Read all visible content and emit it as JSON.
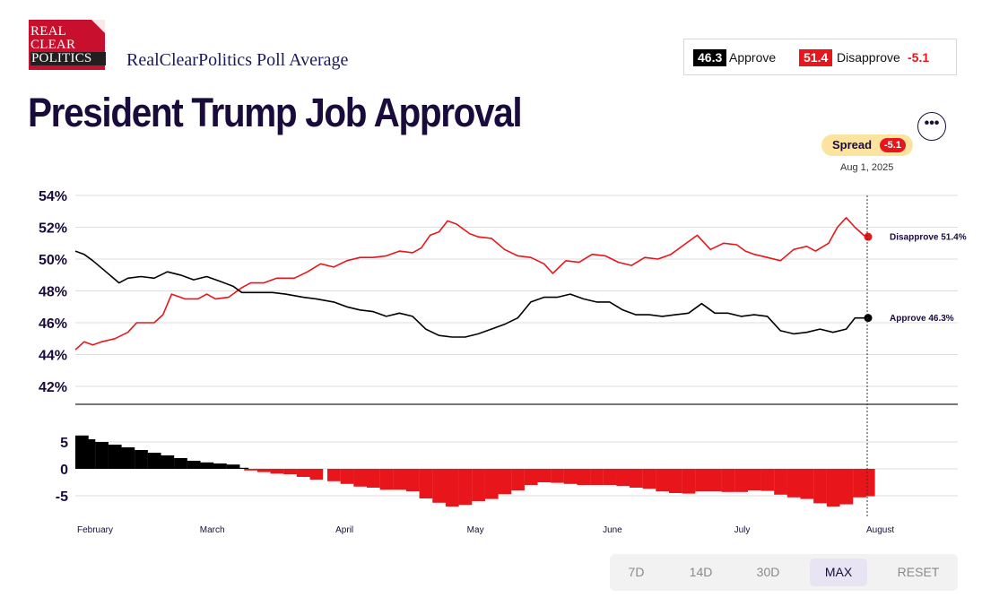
{
  "header": {
    "logo_lines": [
      "REAL",
      "CLEAR",
      "POLITICS"
    ],
    "source": "RealClearPolitics Poll Average",
    "title": "President Trump Job Approval"
  },
  "legend": {
    "approve_value": "46.3",
    "approve_label": "Approve",
    "disapprove_value": "51.4",
    "disapprove_label": "Disapprove",
    "spread": "-5.1"
  },
  "more_button": "•••",
  "spread_pill": {
    "label": "Spread",
    "value": "-5.1",
    "date": "Aug 1, 2025"
  },
  "range_buttons": [
    {
      "label": "7D",
      "active": false
    },
    {
      "label": "14D",
      "active": false
    },
    {
      "label": "30D",
      "active": false
    },
    {
      "label": "MAX",
      "active": true
    },
    {
      "label": "RESET",
      "active": false
    }
  ],
  "colors": {
    "approve": "#000000",
    "disapprove": "#e8161b",
    "title": "#1a0b3d",
    "logo": "#c8102e"
  },
  "chart_data": [
    {
      "type": "line",
      "x_range": [
        "2025-02-01",
        "2025-08-01"
      ],
      "x_ticks": [
        {
          "label": "February",
          "date": "2025-02-01"
        },
        {
          "label": "March",
          "date": "2025-03-01"
        },
        {
          "label": "April",
          "date": "2025-04-01"
        },
        {
          "label": "May",
          "date": "2025-05-01"
        },
        {
          "label": "June",
          "date": "2025-06-01"
        },
        {
          "label": "July",
          "date": "2025-07-01"
        },
        {
          "label": "August",
          "date": "2025-08-01"
        }
      ],
      "y_ticks": [
        "54%",
        "52%",
        "50%",
        "48%",
        "46%",
        "44%",
        "42%"
      ],
      "ylim": [
        40.7,
        54
      ],
      "grid": true,
      "series": [
        {
          "name": "Disapprove",
          "end_label": "Disapprove 51.4%",
          "color": "#e8161b",
          "points": [
            [
              "2025-02-01",
              44.3
            ],
            [
              "2025-02-03",
              44.8
            ],
            [
              "2025-02-05",
              44.6
            ],
            [
              "2025-02-07",
              44.8
            ],
            [
              "2025-02-10",
              45.0
            ],
            [
              "2025-02-13",
              45.4
            ],
            [
              "2025-02-15",
              46.0
            ],
            [
              "2025-02-19",
              46.0
            ],
            [
              "2025-02-21",
              46.5
            ],
            [
              "2025-02-23",
              47.8
            ],
            [
              "2025-02-26",
              47.5
            ],
            [
              "2025-03-01",
              47.5
            ],
            [
              "2025-03-03",
              47.8
            ],
            [
              "2025-03-05",
              47.5
            ],
            [
              "2025-03-08",
              47.6
            ],
            [
              "2025-03-11",
              48.2
            ],
            [
              "2025-03-13",
              48.5
            ],
            [
              "2025-03-16",
              48.5
            ],
            [
              "2025-03-19",
              48.8
            ],
            [
              "2025-03-23",
              48.8
            ],
            [
              "2025-03-26",
              49.2
            ],
            [
              "2025-03-29",
              49.7
            ],
            [
              "2025-04-01",
              49.5
            ],
            [
              "2025-04-04",
              49.9
            ],
            [
              "2025-04-07",
              50.1
            ],
            [
              "2025-04-10",
              50.1
            ],
            [
              "2025-04-13",
              50.2
            ],
            [
              "2025-04-16",
              50.5
            ],
            [
              "2025-04-19",
              50.4
            ],
            [
              "2025-04-21",
              50.7
            ],
            [
              "2025-04-23",
              51.5
            ],
            [
              "2025-04-25",
              51.7
            ],
            [
              "2025-04-27",
              52.4
            ],
            [
              "2025-04-29",
              52.2
            ],
            [
              "2025-05-02",
              51.6
            ],
            [
              "2025-05-04",
              51.4
            ],
            [
              "2025-05-07",
              51.3
            ],
            [
              "2025-05-10",
              50.6
            ],
            [
              "2025-05-13",
              50.2
            ],
            [
              "2025-05-16",
              50.1
            ],
            [
              "2025-05-19",
              49.7
            ],
            [
              "2025-05-21",
              49.1
            ],
            [
              "2025-05-24",
              49.9
            ],
            [
              "2025-05-27",
              49.8
            ],
            [
              "2025-05-30",
              50.3
            ],
            [
              "2025-06-02",
              50.2
            ],
            [
              "2025-06-05",
              49.8
            ],
            [
              "2025-06-08",
              49.6
            ],
            [
              "2025-06-11",
              50.1
            ],
            [
              "2025-06-14",
              50.0
            ],
            [
              "2025-06-17",
              50.3
            ],
            [
              "2025-06-20",
              50.9
            ],
            [
              "2025-06-23",
              51.5
            ],
            [
              "2025-06-26",
              50.6
            ],
            [
              "2025-06-29",
              51.0
            ],
            [
              "2025-07-02",
              50.9
            ],
            [
              "2025-07-04",
              50.5
            ],
            [
              "2025-07-06",
              50.3
            ],
            [
              "2025-07-09",
              50.1
            ],
            [
              "2025-07-12",
              49.9
            ],
            [
              "2025-07-15",
              50.6
            ],
            [
              "2025-07-18",
              50.8
            ],
            [
              "2025-07-20",
              50.5
            ],
            [
              "2025-07-23",
              51.0
            ],
            [
              "2025-07-25",
              52.0
            ],
            [
              "2025-07-27",
              52.6
            ],
            [
              "2025-07-29",
              52.0
            ],
            [
              "2025-07-31",
              51.5
            ],
            [
              "2025-08-01",
              51.4
            ]
          ]
        },
        {
          "name": "Approve",
          "end_label": "Approve 46.3%",
          "color": "#000000",
          "points": [
            [
              "2025-02-01",
              50.5
            ],
            [
              "2025-02-03",
              50.3
            ],
            [
              "2025-02-05",
              49.9
            ],
            [
              "2025-02-08",
              49.2
            ],
            [
              "2025-02-11",
              48.5
            ],
            [
              "2025-02-13",
              48.8
            ],
            [
              "2025-02-16",
              48.9
            ],
            [
              "2025-02-19",
              48.8
            ],
            [
              "2025-02-22",
              49.2
            ],
            [
              "2025-02-25",
              49.0
            ],
            [
              "2025-02-28",
              48.7
            ],
            [
              "2025-03-03",
              48.9
            ],
            [
              "2025-03-06",
              48.6
            ],
            [
              "2025-03-09",
              48.3
            ],
            [
              "2025-03-11",
              47.9
            ],
            [
              "2025-03-14",
              47.9
            ],
            [
              "2025-03-18",
              47.9
            ],
            [
              "2025-03-21",
              47.8
            ],
            [
              "2025-03-25",
              47.6
            ],
            [
              "2025-03-28",
              47.5
            ],
            [
              "2025-04-01",
              47.3
            ],
            [
              "2025-04-04",
              47.0
            ],
            [
              "2025-04-07",
              46.8
            ],
            [
              "2025-04-10",
              46.7
            ],
            [
              "2025-04-13",
              46.4
            ],
            [
              "2025-04-16",
              46.6
            ],
            [
              "2025-04-19",
              46.4
            ],
            [
              "2025-04-22",
              45.6
            ],
            [
              "2025-04-25",
              45.2
            ],
            [
              "2025-04-28",
              45.1
            ],
            [
              "2025-05-01",
              45.1
            ],
            [
              "2025-05-04",
              45.3
            ],
            [
              "2025-05-07",
              45.6
            ],
            [
              "2025-05-10",
              45.9
            ],
            [
              "2025-05-13",
              46.3
            ],
            [
              "2025-05-16",
              47.3
            ],
            [
              "2025-05-19",
              47.6
            ],
            [
              "2025-05-22",
              47.6
            ],
            [
              "2025-05-25",
              47.8
            ],
            [
              "2025-05-28",
              47.5
            ],
            [
              "2025-05-31",
              47.3
            ],
            [
              "2025-06-03",
              47.3
            ],
            [
              "2025-06-06",
              46.8
            ],
            [
              "2025-06-09",
              46.5
            ],
            [
              "2025-06-12",
              46.5
            ],
            [
              "2025-06-15",
              46.4
            ],
            [
              "2025-06-18",
              46.5
            ],
            [
              "2025-06-21",
              46.6
            ],
            [
              "2025-06-24",
              47.2
            ],
            [
              "2025-06-27",
              46.6
            ],
            [
              "2025-06-30",
              46.6
            ],
            [
              "2025-07-03",
              46.4
            ],
            [
              "2025-07-06",
              46.5
            ],
            [
              "2025-07-09",
              46.4
            ],
            [
              "2025-07-12",
              45.5
            ],
            [
              "2025-07-15",
              45.3
            ],
            [
              "2025-07-18",
              45.4
            ],
            [
              "2025-07-21",
              45.6
            ],
            [
              "2025-07-24",
              45.4
            ],
            [
              "2025-07-27",
              45.6
            ],
            [
              "2025-07-29",
              46.3
            ],
            [
              "2025-08-01",
              46.3
            ]
          ]
        }
      ]
    },
    {
      "type": "bar",
      "series_name": "Spread",
      "x_range": [
        "2025-02-01",
        "2025-08-01"
      ],
      "y_ticks": [
        "5",
        "0",
        "-5"
      ],
      "ylim": [
        -8,
        8
      ],
      "positive_color": "#000000",
      "negative_color": "#e8161b",
      "points": [
        [
          "2025-02-01",
          6.2
        ],
        [
          "2025-02-04",
          5.5
        ],
        [
          "2025-02-07",
          5.0
        ],
        [
          "2025-02-10",
          4.5
        ],
        [
          "2025-02-13",
          4.0
        ],
        [
          "2025-02-16",
          3.5
        ],
        [
          "2025-02-19",
          3.0
        ],
        [
          "2025-02-22",
          2.5
        ],
        [
          "2025-02-25",
          2.0
        ],
        [
          "2025-02-28",
          1.5
        ],
        [
          "2025-03-03",
          1.2
        ],
        [
          "2025-03-06",
          1.0
        ],
        [
          "2025-03-09",
          0.8
        ],
        [
          "2025-03-11",
          0.2
        ],
        [
          "2025-03-13",
          -0.3
        ],
        [
          "2025-03-16",
          -0.6
        ],
        [
          "2025-03-19",
          -0.9
        ],
        [
          "2025-03-22",
          -1.0
        ],
        [
          "2025-03-25",
          -1.5
        ],
        [
          "2025-03-28",
          -2.0
        ],
        [
          "2025-04-01",
          -2.3
        ],
        [
          "2025-04-04",
          -2.8
        ],
        [
          "2025-04-07",
          -3.3
        ],
        [
          "2025-04-10",
          -3.5
        ],
        [
          "2025-04-13",
          -3.9
        ],
        [
          "2025-04-16",
          -3.9
        ],
        [
          "2025-04-19",
          -4.2
        ],
        [
          "2025-04-22",
          -5.5
        ],
        [
          "2025-04-25",
          -6.3
        ],
        [
          "2025-04-28",
          -7.0
        ],
        [
          "2025-05-01",
          -6.7
        ],
        [
          "2025-05-04",
          -6.0
        ],
        [
          "2025-05-07",
          -5.6
        ],
        [
          "2025-05-10",
          -4.7
        ],
        [
          "2025-05-13",
          -4.0
        ],
        [
          "2025-05-16",
          -3.0
        ],
        [
          "2025-05-19",
          -2.5
        ],
        [
          "2025-05-22",
          -2.6
        ],
        [
          "2025-05-25",
          -2.8
        ],
        [
          "2025-05-28",
          -3.0
        ],
        [
          "2025-05-31",
          -3.0
        ],
        [
          "2025-06-03",
          -3.0
        ],
        [
          "2025-06-06",
          -3.2
        ],
        [
          "2025-06-09",
          -3.5
        ],
        [
          "2025-06-12",
          -3.7
        ],
        [
          "2025-06-15",
          -4.2
        ],
        [
          "2025-06-18",
          -4.5
        ],
        [
          "2025-06-21",
          -4.6
        ],
        [
          "2025-06-24",
          -4.2
        ],
        [
          "2025-06-27",
          -4.2
        ],
        [
          "2025-06-30",
          -4.3
        ],
        [
          "2025-07-03",
          -4.3
        ],
        [
          "2025-07-06",
          -4.0
        ],
        [
          "2025-07-09",
          -4.1
        ],
        [
          "2025-07-12",
          -4.8
        ],
        [
          "2025-07-15",
          -5.3
        ],
        [
          "2025-07-18",
          -5.6
        ],
        [
          "2025-07-21",
          -6.4
        ],
        [
          "2025-07-24",
          -7.0
        ],
        [
          "2025-07-27",
          -6.6
        ],
        [
          "2025-07-30",
          -5.3
        ],
        [
          "2025-08-01",
          -5.1
        ]
      ]
    }
  ]
}
